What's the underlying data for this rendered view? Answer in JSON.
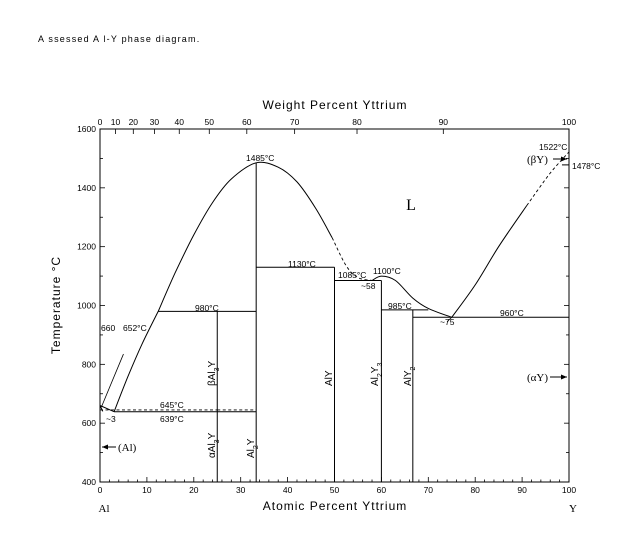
{
  "caption": "A ssessed A l-Y  phase diagram.",
  "axes": {
    "x_bottom_label": "Atomic Percent Yttrium",
    "x_top_label": "Weight Percent Yttrium",
    "y_label": "Temperature °C",
    "x_bottom_ticks": [
      "0",
      "10",
      "20",
      "30",
      "40",
      "50",
      "60",
      "70",
      "80",
      "90",
      "100"
    ],
    "x_top_ticks": [
      "0",
      "10",
      "20",
      "30",
      "40",
      "50",
      "60",
      "70",
      "80",
      "90",
      "100"
    ],
    "y_ticks": [
      "400",
      "600",
      "800",
      "1000",
      "1200",
      "1400",
      "1600"
    ],
    "left_element": "Al",
    "right_element": "Y"
  },
  "chart_data": {
    "type": "phase-diagram",
    "title": "",
    "xlabel": "Atomic Percent Yttrium",
    "ylabel": "Temperature °C",
    "xlim": [
      0,
      100
    ],
    "ylim": [
      400,
      1600
    ],
    "top_axis": {
      "label": "Weight Percent Yttrium",
      "ticks": [
        {
          "wt": 0,
          "at": 0
        },
        {
          "wt": 10,
          "at": 3.3
        },
        {
          "wt": 20,
          "at": 7.1
        },
        {
          "wt": 30,
          "at": 11.6
        },
        {
          "wt": 40,
          "at": 16.9
        },
        {
          "wt": 50,
          "at": 23.3
        },
        {
          "wt": 60,
          "at": 31.3
        },
        {
          "wt": 70,
          "at": 41.5
        },
        {
          "wt": 80,
          "at": 54.8
        },
        {
          "wt": 90,
          "at": 73.2
        },
        {
          "wt": 100,
          "at": 100
        }
      ]
    },
    "phases": [
      {
        "name": "L",
        "x": 66,
        "y": 1365
      },
      {
        "name": "(Al)",
        "x": 4.5,
        "y": 515
      },
      {
        "name": "(αY)",
        "x": 93.5,
        "y": 735
      },
      {
        "name": "(βY)",
        "x": 94,
        "y": 1507
      }
    ],
    "compounds": [
      {
        "label": "αAl3Y",
        "x": 25,
        "T_top": 645,
        "label_y": 520
      },
      {
        "label": "βAl3Y",
        "x": 25,
        "T_top": 980,
        "label_y": 760
      },
      {
        "label": "Al2Y",
        "x": 33.3,
        "T_top": 1485,
        "label_y": 510
      },
      {
        "label": "AlY",
        "x": 50,
        "T_top": 1130,
        "label_y": 760
      },
      {
        "label": "Al2Y3",
        "x": 60,
        "T_top": 1085,
        "label_y": 760
      },
      {
        "label": "AlY2",
        "x": 66.7,
        "T_top": 985,
        "label_y": 760
      }
    ],
    "reactions": [
      {
        "label": "660",
        "T": 660,
        "x": 0
      },
      {
        "label": "652°C",
        "T": 652,
        "x": 12.5
      },
      {
        "label": "~3",
        "T": 639,
        "x": 3
      },
      {
        "label": "980°C",
        "T": 980,
        "x": 12.4
      },
      {
        "label": "645°C",
        "T": 645,
        "x": 0
      },
      {
        "label": "639°C",
        "T": 639,
        "x": 3
      },
      {
        "label": "1485°C",
        "T": 1485,
        "x": 33.3
      },
      {
        "label": "1130°C",
        "T": 1130,
        "x": 33.3
      },
      {
        "label": "1085°C",
        "T": 1085,
        "x": 50
      },
      {
        "label": "~58",
        "T": 1085,
        "x": 58
      },
      {
        "label": "1100°C",
        "T": 1100,
        "x": 60
      },
      {
        "label": "985°C",
        "T": 985,
        "x": 60
      },
      {
        "label": "~75",
        "T": 960,
        "x": 75
      },
      {
        "label": "960°C",
        "T": 960,
        "x": 75
      },
      {
        "label": "1522°C",
        "T": 1522,
        "x": 100
      },
      {
        "label": "1478°C",
        "T": 1478,
        "x": 100
      }
    ],
    "liquidus": [
      {
        "segment": "Al-side",
        "points": [
          [
            0,
            660
          ],
          [
            3,
            639
          ],
          [
            6,
            760
          ],
          [
            9,
            870
          ],
          [
            12.4,
            980
          ]
        ]
      },
      {
        "segment": "Al2Y-dome",
        "points": [
          [
            12.4,
            980
          ],
          [
            16,
            1110
          ],
          [
            20,
            1240
          ],
          [
            24,
            1350
          ],
          [
            28,
            1430
          ],
          [
            33.3,
            1485
          ],
          [
            38,
            1470
          ],
          [
            42,
            1420
          ],
          [
            46,
            1330
          ],
          [
            49.5,
            1230
          ],
          [
            52.5,
            1135
          ],
          [
            55,
            1095
          ],
          [
            58,
            1085
          ]
        ]
      },
      {
        "segment": "Al2Y3-hump",
        "points": [
          [
            58,
            1085
          ],
          [
            60,
            1100
          ],
          [
            63,
            1085
          ],
          [
            66.7,
            1025
          ],
          [
            70,
            990
          ],
          [
            75,
            960
          ]
        ]
      },
      {
        "segment": "Y-side",
        "points": [
          [
            75,
            960
          ],
          [
            80,
            1070
          ],
          [
            85,
            1200
          ],
          [
            91,
            1340
          ],
          [
            96,
            1450
          ],
          [
            100,
            1522
          ]
        ]
      }
    ],
    "isotherms": [
      {
        "T": 980,
        "x_range": [
          12.4,
          33.3
        ]
      },
      {
        "T": 645,
        "x_range": [
          0,
          25
        ],
        "dashed": true
      },
      {
        "T": 645,
        "x_range": [
          25,
          33.3
        ],
        "dashed": true
      },
      {
        "T": 639,
        "x_range": [
          3,
          33.3
        ]
      },
      {
        "T": 1130,
        "x_range": [
          33.3,
          50
        ]
      },
      {
        "T": 1085,
        "x_range": [
          50,
          60
        ]
      },
      {
        "T": 985,
        "x_range": [
          60,
          70
        ]
      },
      {
        "T": 960,
        "x_range": [
          66.7,
          100
        ]
      },
      {
        "T": 1478,
        "x_range": [
          98.5,
          100
        ]
      }
    ]
  },
  "labels": {
    "L": "L",
    "Al_phase": "(Al)",
    "aY_phase": "(αY)",
    "bY_phase": "(βY)",
    "t660": "660",
    "t652": "652°C",
    "t980": "980°C",
    "t645": "645°C",
    "t639": "639°C",
    "t3": "~3",
    "t1485": "1485°C",
    "t1130": "1130°C",
    "t1085": "1085°C",
    "t58": "~58",
    "t1100": "1100°C",
    "t985": "985°C",
    "t75": "~75",
    "t960": "960°C",
    "t1522": "1522°C",
    "t1478": "1478°C",
    "c_aAl3Y": "αAl",
    "c_aAl3Y_sub": "3",
    "c_aAl3Y_end": "Y",
    "c_bAl3Y": "βAl",
    "c_bAl3Y_sub": "3",
    "c_bAl3Y_end": "Y",
    "c_Al2Y": "Al",
    "c_Al2Y_sub": "2",
    "c_Al2Y_end": "Y",
    "c_AlY": "AlY",
    "c_Al2Y3": "Al",
    "c_Al2Y3_sub": "2",
    "c_Al2Y3_mid": "Y",
    "c_Al2Y3_sub2": "3",
    "c_AlY2": "AlY",
    "c_AlY2_sub": "2"
  }
}
